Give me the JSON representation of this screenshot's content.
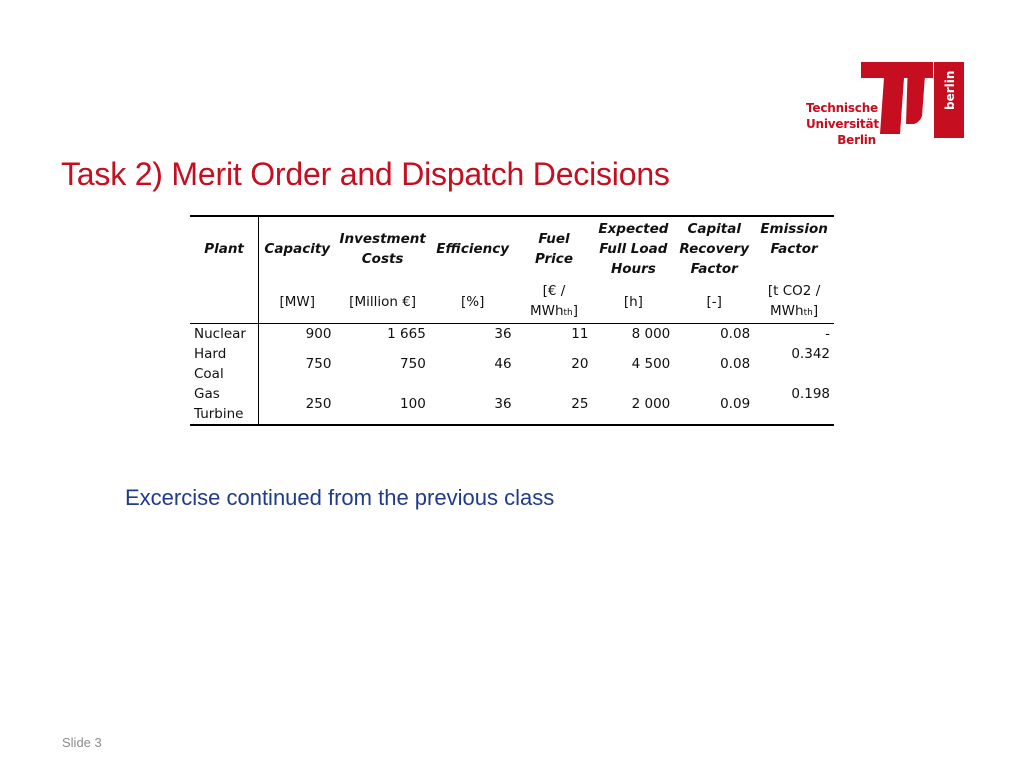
{
  "logo": {
    "lines": [
      "Technische",
      "Universität",
      "Berlin"
    ],
    "vertical_text": "berlin",
    "brand_color": "#c50e1f"
  },
  "title": "Task 2) Merit Order and Dispatch Decisions",
  "table": {
    "headers": {
      "plant": "Plant",
      "capacity": "Capacity",
      "investment": [
        "Investment",
        "Costs"
      ],
      "efficiency": "Efficiency",
      "fuel": [
        "Fuel",
        "Price"
      ],
      "flh": [
        "Expected",
        "Full Load",
        "Hours"
      ],
      "crf": [
        "Capital",
        "Recovery",
        "Factor"
      ],
      "emission": [
        "Emission",
        "Factor"
      ]
    },
    "units": {
      "capacity": "[MW]",
      "investment": "[Million €]",
      "efficiency": "[%]",
      "fuel_a": "[€ /",
      "fuel_b": "MWh",
      "fuel_sub": "th",
      "fuel_c": "]",
      "flh": "[h]",
      "crf": "[-]",
      "emission_a": "[t CO2 /",
      "emission_b": "MWh",
      "emission_sub": "th",
      "emission_c": "]"
    },
    "rows": [
      {
        "plant": [
          "Nuclear"
        ],
        "capacity": "900",
        "investment": "1 665",
        "efficiency": "36",
        "fuel": "11",
        "flh": "8 000",
        "crf": "0.08",
        "emission": "-"
      },
      {
        "plant": [
          "Hard",
          "Coal"
        ],
        "capacity": "750",
        "investment": "750",
        "efficiency": "46",
        "fuel": "20",
        "flh": "4 500",
        "crf": "0.08",
        "emission": "0.342"
      },
      {
        "plant": [
          "Gas",
          "Turbine"
        ],
        "capacity": "250",
        "investment": "100",
        "efficiency": "36",
        "fuel": "25",
        "flh": "2 000",
        "crf": "0.09",
        "emission": "0.198"
      }
    ]
  },
  "subtitle": "Excercise continued from the previous class",
  "footer": "Slide 3"
}
